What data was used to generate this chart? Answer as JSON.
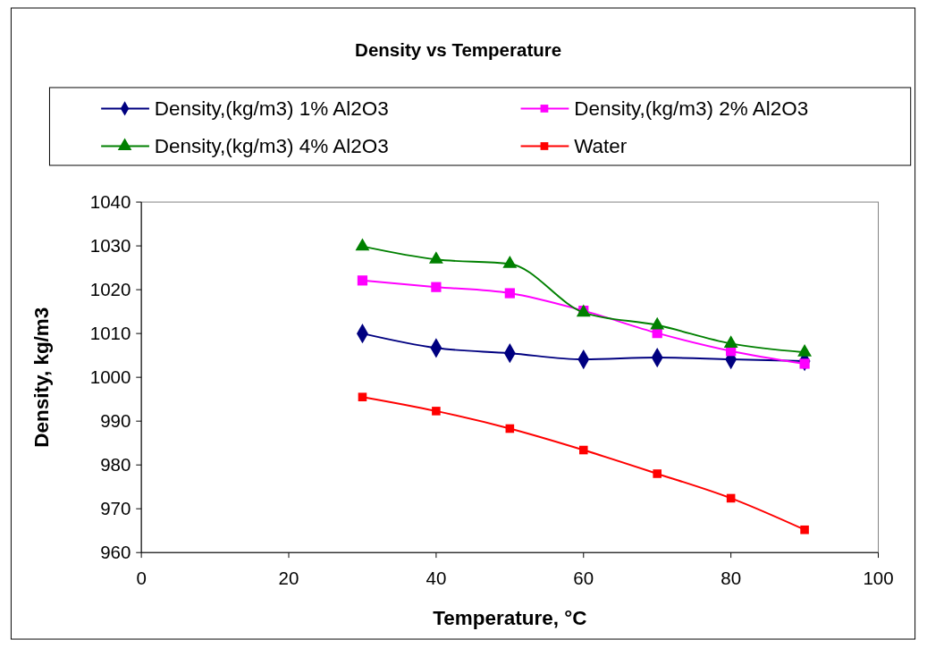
{
  "chart_data": {
    "type": "line",
    "title": "Density vs Temperature",
    "xlabel": "Temperature, °C",
    "ylabel": "Density, kg/m3",
    "xlim": [
      0,
      100
    ],
    "xticks": [
      0,
      20,
      40,
      60,
      80,
      100
    ],
    "ylim": [
      960,
      1040
    ],
    "yticks": [
      960,
      970,
      980,
      990,
      1000,
      1010,
      1020,
      1030,
      1040
    ],
    "grid": false,
    "legend": "top",
    "line_style": "solid",
    "x": [
      30,
      40,
      50,
      60,
      70,
      80,
      90
    ],
    "series": [
      {
        "name": "Density,(kg/m3) 1% Al2O3",
        "color": "#000080",
        "marker": "diamond",
        "values": [
          1010.0,
          1006.7,
          1005.5,
          1004.1,
          1004.5,
          1004.1,
          1003.7
        ]
      },
      {
        "name": "Density,(kg/m3) 2% Al2O3",
        "color": "#ff00ff",
        "marker": "square",
        "values": [
          1022.1,
          1020.6,
          1019.2,
          1015.2,
          1010.1,
          1006.0,
          1003.1
        ]
      },
      {
        "name": "Density,(kg/m3) 4% Al2O3",
        "color": "#008000",
        "marker": "triangle",
        "values": [
          1029.9,
          1026.9,
          1025.9,
          1014.8,
          1011.9,
          1007.7,
          1005.7
        ]
      },
      {
        "name": "Water",
        "color": "#ff0000",
        "marker": "square",
        "values": [
          995.5,
          992.3,
          988.3,
          983.4,
          978.0,
          972.4,
          965.2
        ]
      }
    ]
  }
}
